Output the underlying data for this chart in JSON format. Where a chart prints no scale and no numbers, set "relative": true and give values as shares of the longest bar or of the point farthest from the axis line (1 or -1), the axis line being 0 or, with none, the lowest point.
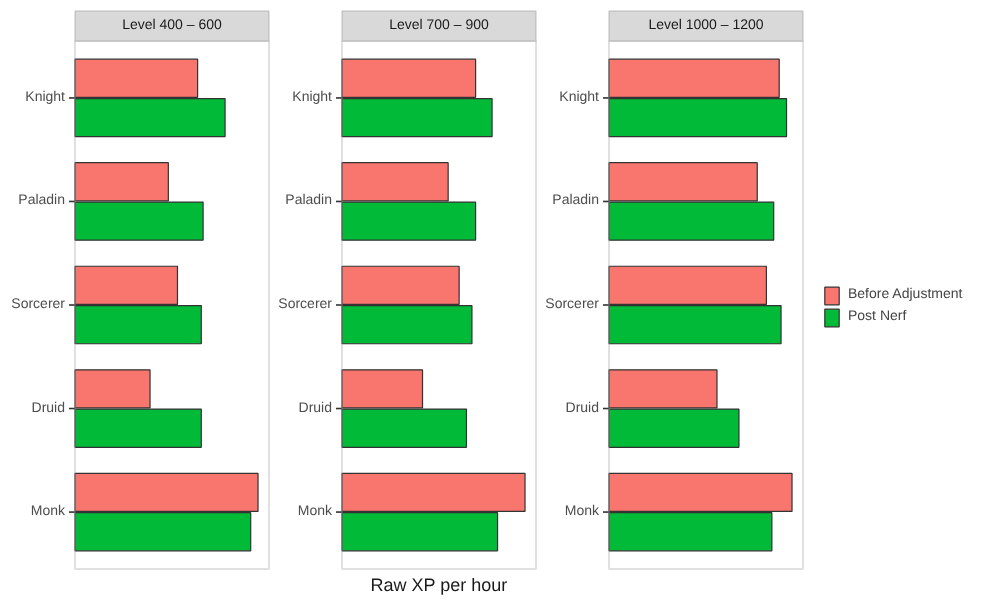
{
  "chart_data": [
    {
      "type": "bar",
      "orientation": "horizontal",
      "relative": true,
      "title": "Level 400 – 600",
      "categories": [
        "Knight",
        "Paladin",
        "Sorcerer",
        "Druid",
        "Monk"
      ],
      "series": [
        {
          "color": "#f8766d",
          "values": [
            0.67,
            0.51,
            0.56,
            0.41,
            1
          ]
        },
        {
          "color": "#00ba38",
          "values": [
            0.82,
            0.7,
            0.69,
            0.69,
            0.96
          ]
        }
      ]
    },
    {
      "type": "bar",
      "orientation": "horizontal",
      "relative": true,
      "title": "Level 700 – 900",
      "xlabel": "Raw XP per hour",
      "categories": [
        "Knight",
        "Paladin",
        "Sorcerer",
        "Druid",
        "Monk"
      ],
      "series": [
        {
          "color": "#f8766d",
          "values": [
            0.73,
            0.58,
            0.64,
            0.44,
            1
          ]
        },
        {
          "color": "#00ba38",
          "values": [
            0.82,
            0.73,
            0.71,
            0.68,
            0.85
          ]
        }
      ]
    },
    {
      "type": "bar",
      "orientation": "horizontal",
      "relative": true,
      "title": "Level 1000 – 1200",
      "legend": "right",
      "categories": [
        "Knight",
        "Paladin",
        "Sorcerer",
        "Druid",
        "Monk"
      ],
      "series": [
        {
          "name": "Before Adjustment",
          "color": "#f8766d",
          "values": [
            0.93,
            0.81,
            0.86,
            0.59,
            1
          ]
        },
        {
          "name": "Post Nerf",
          "color": "#00ba38",
          "values": [
            0.97,
            0.9,
            0.94,
            0.71,
            0.89
          ]
        }
      ]
    }
  ]
}
